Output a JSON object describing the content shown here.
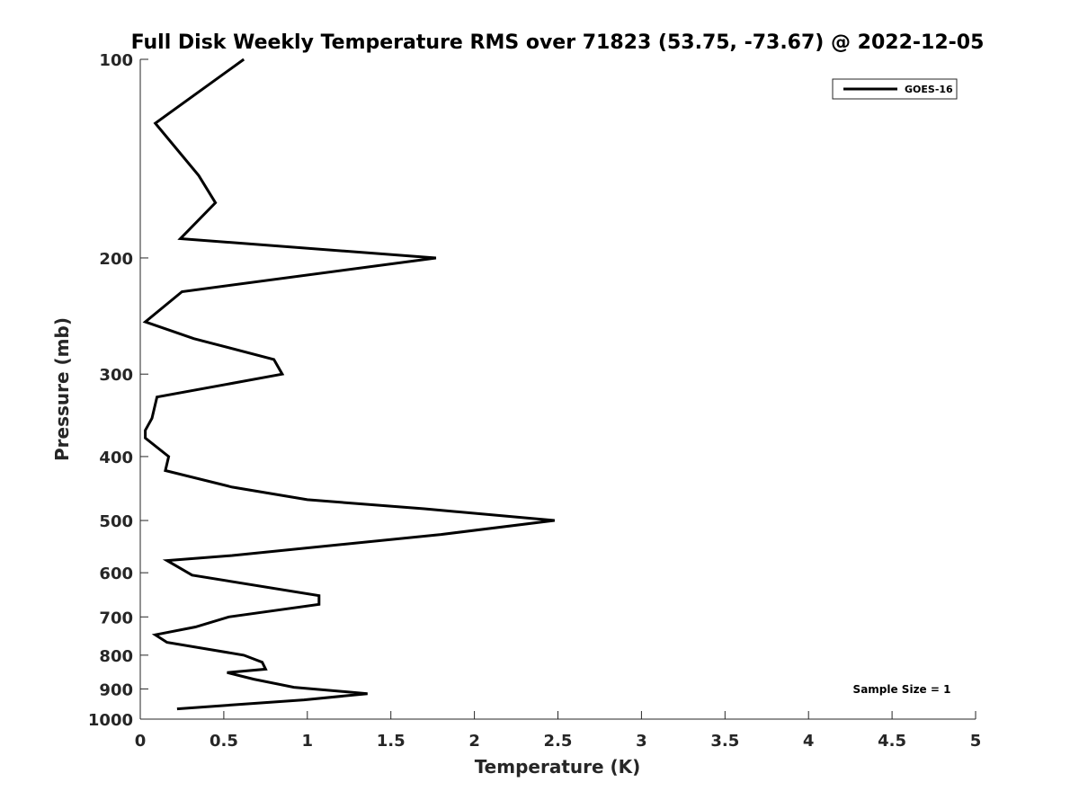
{
  "chart_data": {
    "type": "line",
    "title": "Full Disk Weekly Temperature RMS over 71823 (53.75, -73.67) @ 2022-12-05",
    "xlabel": "Temperature (K)",
    "ylabel": "Pressure (mb)",
    "xlim": [
      0,
      5
    ],
    "ylim": [
      1000,
      100
    ],
    "yscale": "log",
    "x_ticks": [
      0,
      0.5,
      1,
      1.5,
      2,
      2.5,
      3,
      3.5,
      4,
      4.5,
      5
    ],
    "x_tick_labels": [
      "0",
      "0.5",
      "1",
      "1.5",
      "2",
      "2.5",
      "3",
      "3.5",
      "4",
      "4.5",
      "5"
    ],
    "y_ticks": [
      100,
      200,
      300,
      400,
      500,
      600,
      700,
      800,
      900,
      1000
    ],
    "y_tick_labels": [
      "100",
      "200",
      "300",
      "400",
      "500",
      "600",
      "700",
      "800",
      "900",
      "1000"
    ],
    "grid": false,
    "legend_position": "top-right",
    "annotation": "Sample Size = 1",
    "series": [
      {
        "name": "GOES-16",
        "color": "#000000",
        "points": [
          {
            "x": 0.62,
            "y": 100
          },
          {
            "x": 0.09,
            "y": 125
          },
          {
            "x": 0.35,
            "y": 150
          },
          {
            "x": 0.45,
            "y": 165
          },
          {
            "x": 0.24,
            "y": 187
          },
          {
            "x": 1.77,
            "y": 200
          },
          {
            "x": 0.25,
            "y": 225
          },
          {
            "x": 0.03,
            "y": 250
          },
          {
            "x": 0.32,
            "y": 265
          },
          {
            "x": 0.8,
            "y": 285
          },
          {
            "x": 0.85,
            "y": 300
          },
          {
            "x": 0.1,
            "y": 325
          },
          {
            "x": 0.07,
            "y": 350
          },
          {
            "x": 0.03,
            "y": 365
          },
          {
            "x": 0.03,
            "y": 375
          },
          {
            "x": 0.17,
            "y": 400
          },
          {
            "x": 0.15,
            "y": 420
          },
          {
            "x": 0.55,
            "y": 445
          },
          {
            "x": 1.0,
            "y": 465
          },
          {
            "x": 1.7,
            "y": 480
          },
          {
            "x": 2.48,
            "y": 500
          },
          {
            "x": 1.8,
            "y": 525
          },
          {
            "x": 0.55,
            "y": 565
          },
          {
            "x": 0.16,
            "y": 575
          },
          {
            "x": 0.31,
            "y": 605
          },
          {
            "x": 1.07,
            "y": 650
          },
          {
            "x": 1.07,
            "y": 670
          },
          {
            "x": 0.53,
            "y": 700
          },
          {
            "x": 0.33,
            "y": 725
          },
          {
            "x": 0.09,
            "y": 745
          },
          {
            "x": 0.16,
            "y": 765
          },
          {
            "x": 0.62,
            "y": 800
          },
          {
            "x": 0.73,
            "y": 820
          },
          {
            "x": 0.75,
            "y": 840
          },
          {
            "x": 0.52,
            "y": 850
          },
          {
            "x": 0.68,
            "y": 870
          },
          {
            "x": 0.92,
            "y": 895
          },
          {
            "x": 1.36,
            "y": 915
          },
          {
            "x": 0.98,
            "y": 935
          },
          {
            "x": 0.22,
            "y": 965
          }
        ]
      }
    ]
  }
}
